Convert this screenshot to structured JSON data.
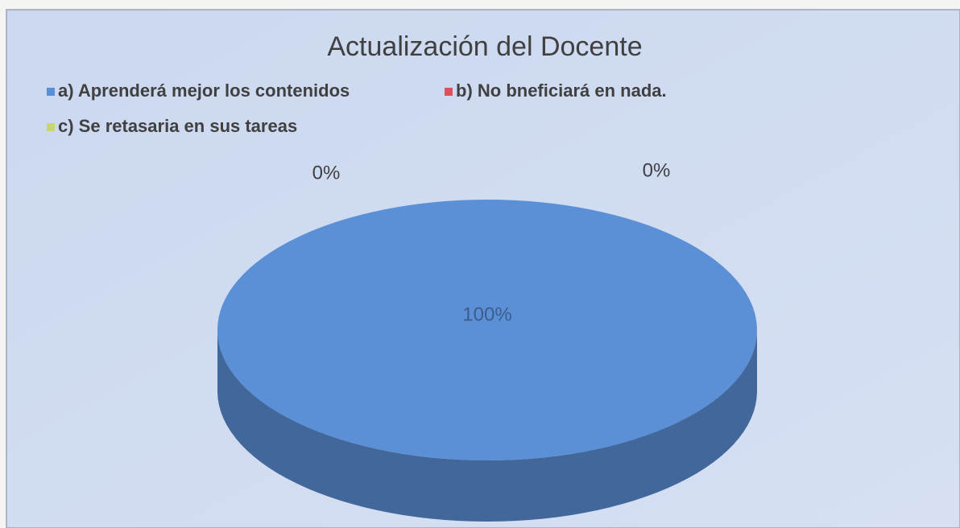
{
  "chart_data": {
    "type": "pie",
    "title": "Actualización del Docente",
    "categories": [
      "a) Aprenderá mejor los contenidos",
      "b) No bneficiará en nada.",
      "c) Se retasaria en sus tareas"
    ],
    "values": [
      100,
      0,
      0
    ],
    "value_labels": [
      "100%",
      "0%",
      "0%"
    ],
    "colors": [
      "#5b8fd6",
      "#e0505c",
      "#c9d66e"
    ],
    "legend": "top"
  }
}
